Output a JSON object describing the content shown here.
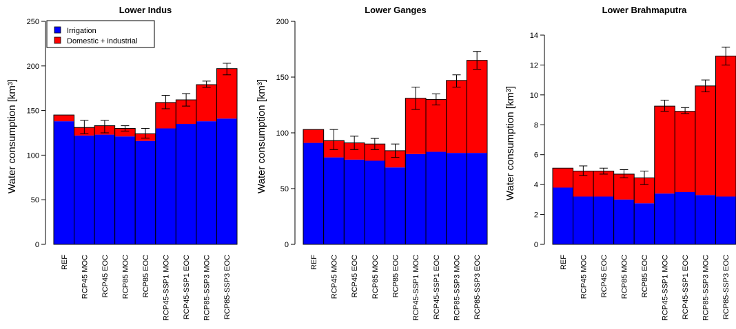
{
  "legend": [
    {
      "label": "Irrigation",
      "color": "#0000ff"
    },
    {
      "label": "Domestic + industrial",
      "color": "#ff0000"
    }
  ],
  "chart_data": [
    {
      "type": "bar",
      "stacked": true,
      "title": "Lower Indus",
      "ylabel": "Water consumption [km³]",
      "categories": [
        "REF",
        "RCP45 MOC",
        "RCP45 EOC",
        "RCP85 MOC",
        "RCP85 EOC",
        "RCP45-SSP1 MOC",
        "RCP45-SSP1 EOC",
        "RCP85-SSP3 MOC",
        "RCP85-SSP3 EOC"
      ],
      "series": [
        {
          "name": "Irrigation",
          "color": "#0000ff",
          "values": [
            138,
            122,
            123,
            121,
            116,
            130,
            135,
            138,
            141
          ]
        },
        {
          "name": "Domestic + industrial",
          "color": "#ff0000",
          "values": [
            7,
            9,
            10,
            9,
            8,
            29,
            27,
            41,
            56
          ]
        }
      ],
      "error_bars": [
        null,
        [
          124,
          139
        ],
        [
          125,
          139
        ],
        [
          127,
          133
        ],
        [
          119,
          130
        ],
        [
          152,
          167
        ],
        [
          155,
          169
        ],
        [
          176,
          183
        ],
        [
          190,
          203
        ]
      ],
      "ylim": [
        0,
        250
      ],
      "yticks": [
        0,
        50,
        100,
        150,
        200,
        250
      ],
      "legend_position": "top-left"
    },
    {
      "type": "bar",
      "stacked": true,
      "title": "Lower Ganges",
      "ylabel": "Water consumption [km³]",
      "categories": [
        "REF",
        "RCP45 MOC",
        "RCP45 EOC",
        "RCP85 MOC",
        "RCP85 EOC",
        "RCP45-SSP1 MOC",
        "RCP45-SSP1 EOC",
        "RCP85-SSP3 MOC",
        "RCP85-SSP3 EOC"
      ],
      "series": [
        {
          "name": "Irrigation",
          "color": "#0000ff",
          "values": [
            91,
            78,
            76,
            75,
            69,
            81,
            83,
            82,
            82
          ]
        },
        {
          "name": "Domestic + industrial",
          "color": "#ff0000",
          "values": [
            12,
            15,
            15,
            15,
            15,
            50,
            47,
            65,
            83
          ]
        }
      ],
      "error_bars": [
        null,
        [
          85,
          103
        ],
        [
          85,
          97
        ],
        [
          85,
          95
        ],
        [
          78,
          90
        ],
        [
          121,
          141
        ],
        [
          125,
          135
        ],
        [
          141,
          152
        ],
        [
          157,
          173
        ]
      ],
      "ylim": [
        0,
        200
      ],
      "yticks": [
        0,
        50,
        100,
        150,
        200
      ]
    },
    {
      "type": "bar",
      "stacked": true,
      "title": "Lower Brahmaputra",
      "ylabel": "Water consumption [km³]",
      "categories": [
        "REF",
        "RCP45 MOC",
        "RCP45 EOC",
        "RCP85 MOC",
        "RCP85 EOC",
        "RCP45-SSP1 MOC",
        "RCP45-SSP1 EOC",
        "RCP85-SSP3 MOC",
        "RCP85-SSP3 EOC"
      ],
      "series": [
        {
          "name": "Irrigation",
          "color": "#0000ff",
          "values": [
            3.8,
            3.2,
            3.2,
            3.0,
            2.75,
            3.4,
            3.5,
            3.3,
            3.2
          ]
        },
        {
          "name": "Domestic + industrial",
          "color": "#ff0000",
          "values": [
            1.3,
            1.7,
            1.7,
            1.7,
            1.7,
            5.85,
            5.4,
            7.3,
            9.4
          ]
        }
      ],
      "error_bars": [
        null,
        [
          4.6,
          5.25
        ],
        [
          4.7,
          5.1
        ],
        [
          4.45,
          5.0
        ],
        [
          4.0,
          4.9
        ],
        [
          8.9,
          9.65
        ],
        [
          8.75,
          9.15
        ],
        [
          10.2,
          11.0
        ],
        [
          12.0,
          13.2
        ]
      ],
      "ylim": [
        0,
        14
      ],
      "yticks": [
        0,
        2,
        4,
        6,
        8,
        10,
        12,
        14
      ]
    }
  ]
}
